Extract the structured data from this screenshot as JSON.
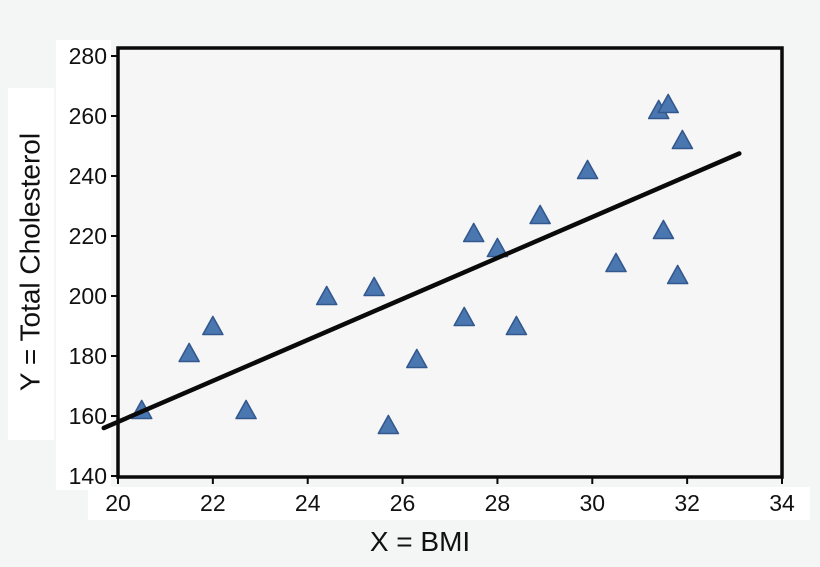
{
  "figure": {
    "background": "#f4f5f5",
    "plot_background": "#f6f6f7",
    "axis_color": "#0a0a0a",
    "text_color": "#111111",
    "marker_fill": "#4a77b0",
    "marker_stroke": "#33588e",
    "trend_line_color": "#0a0a0a"
  },
  "chart_data": {
    "type": "scatter",
    "title": "",
    "xlabel": "X = BMI",
    "ylabel": "Y = Total Cholesterol",
    "xlim": [
      20,
      34
    ],
    "ylim": [
      140,
      280
    ],
    "x_ticks": [
      20,
      22,
      24,
      26,
      28,
      30,
      32,
      34
    ],
    "y_ticks": [
      140,
      160,
      180,
      200,
      220,
      240,
      260,
      280
    ],
    "grid": false,
    "legend": false,
    "marker": "triangle-up",
    "points_columns": [
      "bmi",
      "total_cholesterol"
    ],
    "points": [
      [
        20.5,
        162
      ],
      [
        21.5,
        181
      ],
      [
        22.0,
        190
      ],
      [
        22.7,
        162
      ],
      [
        24.4,
        200
      ],
      [
        25.4,
        203
      ],
      [
        25.7,
        157
      ],
      [
        26.3,
        179
      ],
      [
        27.3,
        193
      ],
      [
        27.5,
        221
      ],
      [
        28.0,
        216
      ],
      [
        28.4,
        190
      ],
      [
        28.9,
        227
      ],
      [
        29.9,
        242
      ],
      [
        30.5,
        211
      ],
      [
        31.4,
        262
      ],
      [
        31.6,
        264
      ],
      [
        31.9,
        252
      ],
      [
        31.5,
        222
      ],
      [
        31.8,
        207
      ]
    ],
    "trend_line": {
      "x1": 19.7,
      "y1": 156,
      "x2": 33.1,
      "y2": 247.5
    }
  }
}
